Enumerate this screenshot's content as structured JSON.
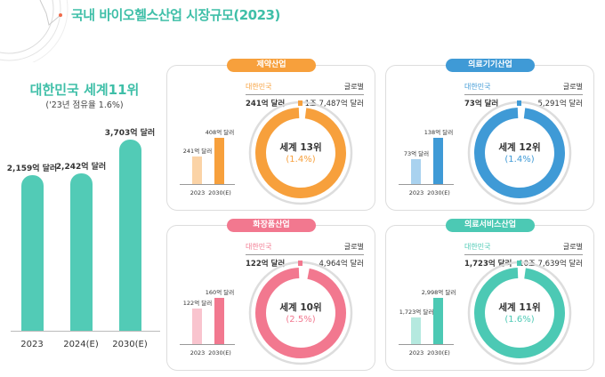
{
  "title": "국내 바이오헬스산업 시장규모(2023)",
  "left": {
    "headline": "대한민국 세계11위",
    "sub": "('23년 점유율 1.6%)"
  },
  "chart_data": {
    "type": "bar",
    "title": "국내 바이오헬스산업 시장규모(2023)",
    "categories": [
      "2023",
      "2024(E)",
      "2030(E)"
    ],
    "values": [
      2159,
      2242,
      3703
    ],
    "labels": [
      "2,159억 달러",
      "2,242억 달러",
      "3,703억 달러"
    ],
    "unit": "억 달러",
    "panels": [
      {
        "name": "제약산업",
        "color": "#f7a03c",
        "light": "#fbd3a6",
        "korea_label": "대한민국",
        "korea_value": "241억 달러",
        "global_label": "글로벌",
        "global_value": "1조 7,487억 달러",
        "rank": "세계 13위",
        "share": "(1.4%)",
        "share_value": 1.4,
        "categories": [
          "2023",
          "2030(E)"
        ],
        "values": [
          241,
          408
        ],
        "value_labels": [
          "241억 달러",
          "408억 달러"
        ]
      },
      {
        "name": "의료기기산업",
        "color": "#3f9ad6",
        "light": "#a9d2ef",
        "korea_label": "대한민국",
        "korea_value": "73억 달러",
        "global_label": "글로벌",
        "global_value": "5,291억 달러",
        "rank": "세계 12위",
        "share": "(1.4%)",
        "share_value": 1.4,
        "categories": [
          "2023",
          "2030(E)"
        ],
        "values": [
          73,
          138
        ],
        "value_labels": [
          "73억 달러",
          "138억 달러"
        ]
      },
      {
        "name": "화장품산업",
        "color": "#f2788f",
        "light": "#f9c4ce",
        "korea_label": "대한민국",
        "korea_value": "122억 달러",
        "global_label": "글로벌",
        "global_value": "4,964억 달러",
        "rank": "세계 10위",
        "share": "(2.5%)",
        "share_value": 2.5,
        "categories": [
          "2023",
          "2030(E)"
        ],
        "values": [
          122,
          160
        ],
        "value_labels": [
          "122억 달러",
          "160억 달러"
        ]
      },
      {
        "name": "의료서비스산업",
        "color": "#4cc9b4",
        "light": "#b5e9df",
        "korea_label": "대한민국",
        "korea_value": "1,723억 달러",
        "global_label": "글로벌",
        "global_value": "10조 7,639억 달러",
        "rank": "세계 11위",
        "share": "(1.6%)",
        "share_value": 1.6,
        "categories": [
          "2023",
          "2030(E)"
        ],
        "values": [
          1723,
          2998
        ],
        "value_labels": [
          "1,723억 달러",
          "2,998억 달러"
        ]
      }
    ]
  }
}
